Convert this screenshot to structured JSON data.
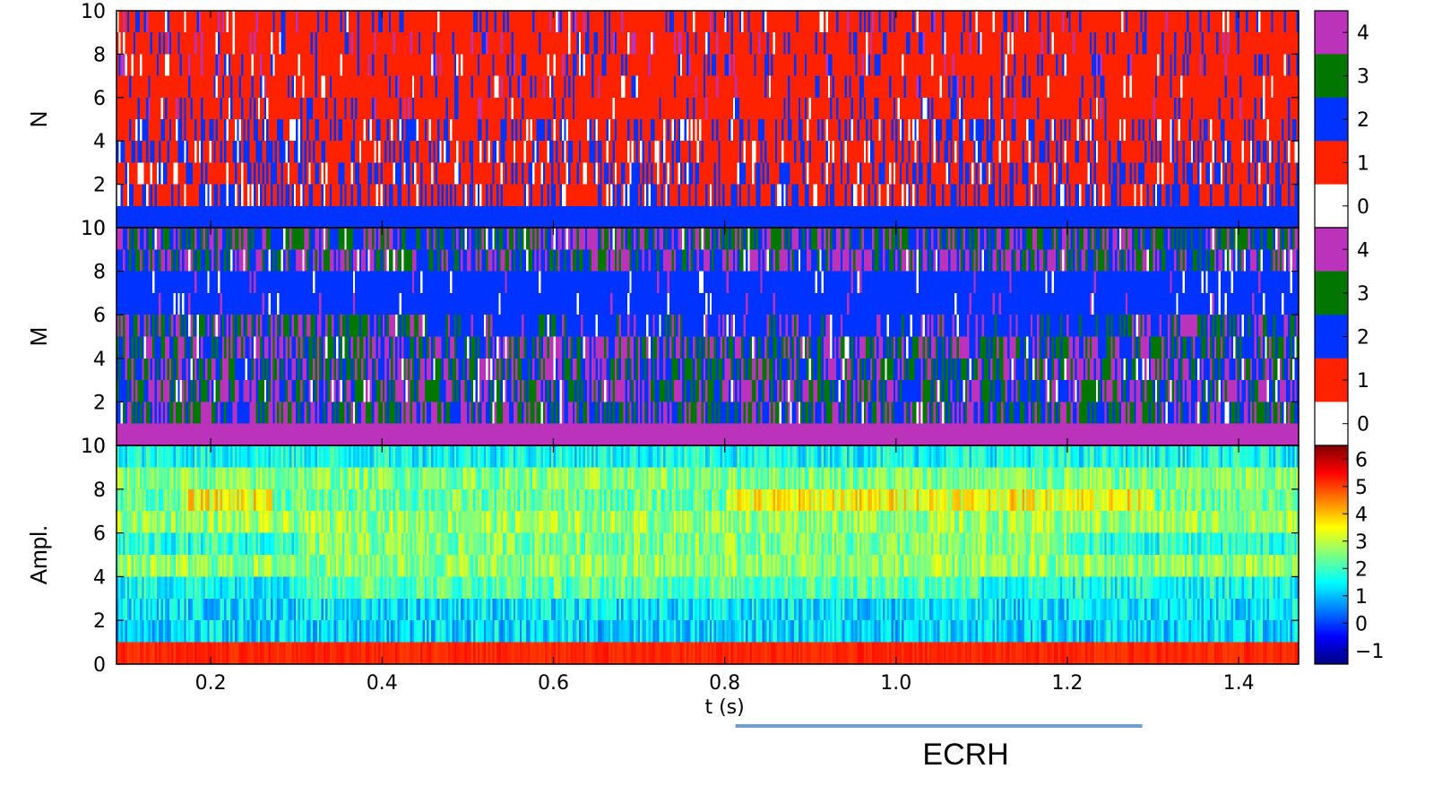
{
  "chart_data": {
    "type": "heatmap",
    "x_axis": {
      "label": "t (s)",
      "range": [
        0.09,
        1.47
      ],
      "ticks": [
        0.2,
        0.4,
        0.6,
        0.8,
        1.0,
        1.2,
        1.4
      ],
      "tick_labels": [
        "0.2",
        "0.4",
        "0.6",
        "0.8",
        "1.0",
        "1.2",
        "1.4"
      ]
    },
    "panels": [
      {
        "id": "N",
        "ylabel": "N",
        "ylim": [
          0,
          10
        ],
        "yticks": [
          0,
          2,
          4,
          6,
          8,
          10
        ],
        "ytick_labels": [
          "0",
          "2",
          "4",
          "6",
          "8",
          "10"
        ],
        "colorbar": {
          "type": "discrete",
          "levels": [
            0,
            1,
            2,
            3,
            4
          ],
          "tick_labels": [
            "0",
            "1",
            "2",
            "3",
            "4"
          ],
          "colors": [
            "#ffffff",
            "#ff2200",
            "#0033ff",
            "#007700",
            "#bb33bb"
          ]
        },
        "row_description": [
          {
            "y": 0,
            "dominant": 2
          },
          {
            "y": 1,
            "dominant": 1,
            "mix": [
              1,
              2
            ]
          },
          {
            "y": 2,
            "dominant": 1,
            "mix": [
              1,
              2
            ]
          },
          {
            "y": 3,
            "dominant": 1,
            "mix": [
              1,
              2
            ]
          },
          {
            "y": 4,
            "dominant": 1,
            "mix": [
              1,
              2
            ]
          },
          {
            "y": 5,
            "dominant": 1
          },
          {
            "y": 6,
            "dominant": 1
          },
          {
            "y": 7,
            "dominant": 1
          },
          {
            "y": 8,
            "dominant": 1
          },
          {
            "y": 9,
            "dominant": 1
          }
        ]
      },
      {
        "id": "M",
        "ylabel": "M",
        "ylim": [
          0,
          10
        ],
        "yticks": [
          0,
          2,
          4,
          6,
          8,
          10
        ],
        "ytick_labels": [
          "0",
          "2",
          "4",
          "6",
          "8",
          "10"
        ],
        "colorbar": {
          "type": "discrete",
          "levels": [
            0,
            1,
            2,
            3,
            4
          ],
          "tick_labels": [
            "0",
            "1",
            "2",
            "3",
            "4"
          ],
          "colors": [
            "#ffffff",
            "#ff2200",
            "#0033ff",
            "#007700",
            "#bb33bb"
          ]
        },
        "row_description": [
          {
            "y": 0,
            "dominant": 4
          },
          {
            "y": 1,
            "mix": [
              2,
              3,
              4
            ]
          },
          {
            "y": 2,
            "mix": [
              2,
              3,
              4
            ]
          },
          {
            "y": 3,
            "mix": [
              2,
              3,
              4
            ]
          },
          {
            "y": 4,
            "mix": [
              2,
              3,
              4
            ]
          },
          {
            "y": 5,
            "mix": [
              2,
              3,
              4
            ]
          },
          {
            "y": 6,
            "dominant": 2
          },
          {
            "y": 7,
            "dominant": 2
          },
          {
            "y": 8,
            "mix": [
              2,
              3,
              4
            ]
          },
          {
            "y": 9,
            "mix": [
              2,
              3,
              4
            ]
          }
        ]
      },
      {
        "id": "Ampl",
        "ylabel": "Ampl.",
        "ylim": [
          0,
          10
        ],
        "yticks": [
          0,
          2,
          4,
          6,
          8,
          10
        ],
        "ytick_labels": [
          "0",
          "2",
          "4",
          "6",
          "8",
          "10"
        ],
        "colorbar": {
          "type": "continuous",
          "colormap": "jet",
          "range": [
            -1.5,
            6.5
          ],
          "ticks": [
            -1,
            0,
            1,
            2,
            3,
            4,
            5,
            6
          ],
          "tick_labels": [
            "−1",
            "0",
            "1",
            "2",
            "3",
            "4",
            "5",
            "6"
          ]
        },
        "row_description": [
          {
            "y": 0,
            "value": 5.2
          },
          {
            "y": 1,
            "value": 1.2
          },
          {
            "y": 2,
            "value": 1.3
          },
          {
            "y": 3,
            "value": 1.6
          },
          {
            "y": 4,
            "value": 2.6
          },
          {
            "y": 5,
            "value": 1.8
          },
          {
            "y": 6,
            "value": 2.7
          },
          {
            "y": 7,
            "value": 2.3
          },
          {
            "y": 8,
            "value": 2.5
          },
          {
            "y": 9,
            "value": 1.6
          }
        ]
      }
    ],
    "annotation": {
      "text": "ECRH",
      "x_range": [
        0.8,
        1.3
      ]
    }
  }
}
